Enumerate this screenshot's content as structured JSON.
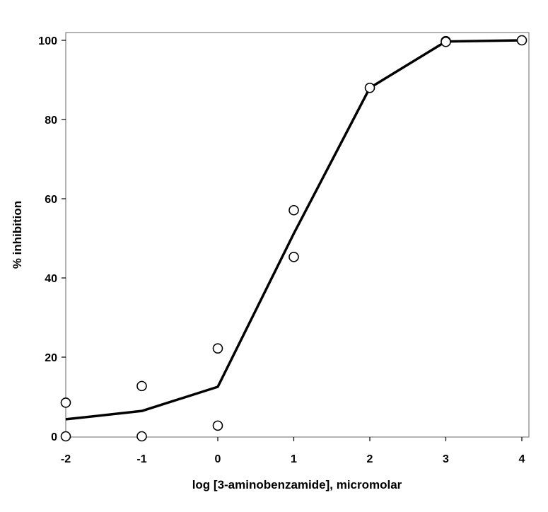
{
  "chart_data": {
    "type": "scatter",
    "title": "",
    "xlabel": "log [3-aminobenzamide], micromolar",
    "ylabel": "% inhibition",
    "xlim": [
      -2,
      4
    ],
    "ylim": [
      0,
      100
    ],
    "x_ticks": [
      -2,
      -1,
      0,
      1,
      2,
      3,
      4
    ],
    "y_ticks": [
      0,
      20,
      40,
      60,
      80,
      100
    ],
    "grid": false,
    "legend": "none",
    "series": [
      {
        "kind": "points",
        "marker": "open-circle",
        "x": [
          -2,
          -2,
          -1,
          -1,
          0,
          0,
          1,
          1,
          2,
          3,
          3,
          4
        ],
        "y": [
          8.5,
          0,
          12.7,
          0,
          22.2,
          2.7,
          57.1,
          45.3,
          88,
          99.8,
          99.6,
          100
        ]
      },
      {
        "kind": "fit-line",
        "x": [
          -2,
          -1,
          0,
          1,
          2,
          3,
          4
        ],
        "y": [
          4.3,
          6.4,
          12.5,
          51.2,
          88,
          99.7,
          100
        ]
      }
    ]
  }
}
